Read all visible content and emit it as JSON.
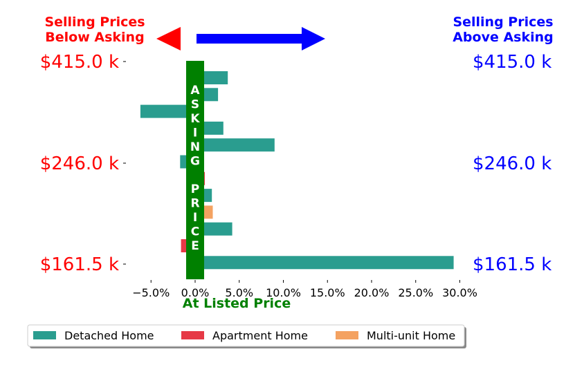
{
  "header": {
    "left_label_line1": "Selling Prices",
    "left_label_line2": "Below Asking",
    "right_label_line1": "Selling Prices",
    "right_label_line2": "Above Asking"
  },
  "center_band_label": "ASKING PRICE",
  "xlabel": "At Listed Price",
  "colors": {
    "below": "#ff0000",
    "above": "#0000ff",
    "band": "#008000",
    "detached": "#2a9d8f",
    "apartment": "#e63946",
    "multi": "#f4a261"
  },
  "chart_data": {
    "type": "bar",
    "orientation": "horizontal",
    "xlim": [
      -0.075,
      0.3
    ],
    "x_ticks": [
      -0.05,
      0.0,
      0.05,
      0.1,
      0.15,
      0.2,
      0.25,
      0.3
    ],
    "x_tick_labels": [
      "−5.0%",
      "0.0%",
      "5.0%",
      "10.0%",
      "15.0%",
      "20.0%",
      "25.0%",
      "30.0%"
    ],
    "y_tick_labels_left": [
      "$415.0 k",
      "$246.0 k",
      "$161.5 k"
    ],
    "y_tick_labels_right": [
      "$415.0 k",
      "$246.0 k",
      "$161.5 k"
    ],
    "series": [
      {
        "name": "Detached Home",
        "color": "#2a9d8f"
      },
      {
        "name": "Apartment Home",
        "color": "#e63946"
      },
      {
        "name": "Multi-unit Home",
        "color": "#f4a261"
      }
    ],
    "bars": [
      {
        "series": "Detached Home",
        "value": 0.037
      },
      {
        "series": "Detached Home",
        "value": 0.026
      },
      {
        "series": "Detached Home",
        "value": -0.062
      },
      {
        "series": "Detached Home",
        "value": 0.032
      },
      {
        "series": "Detached Home",
        "value": 0.09
      },
      {
        "series": "Detached Home",
        "value": -0.017
      },
      {
        "series": "Apartment Home",
        "value": 0.011
      },
      {
        "series": "Detached Home",
        "value": 0.019
      },
      {
        "series": "Multi-unit Home",
        "value": 0.02
      },
      {
        "series": "Detached Home",
        "value": 0.042
      },
      {
        "series": "Apartment Home",
        "value": -0.016
      },
      {
        "series": "Detached Home",
        "value": 0.293
      }
    ],
    "legend_position": "bottom-left"
  }
}
